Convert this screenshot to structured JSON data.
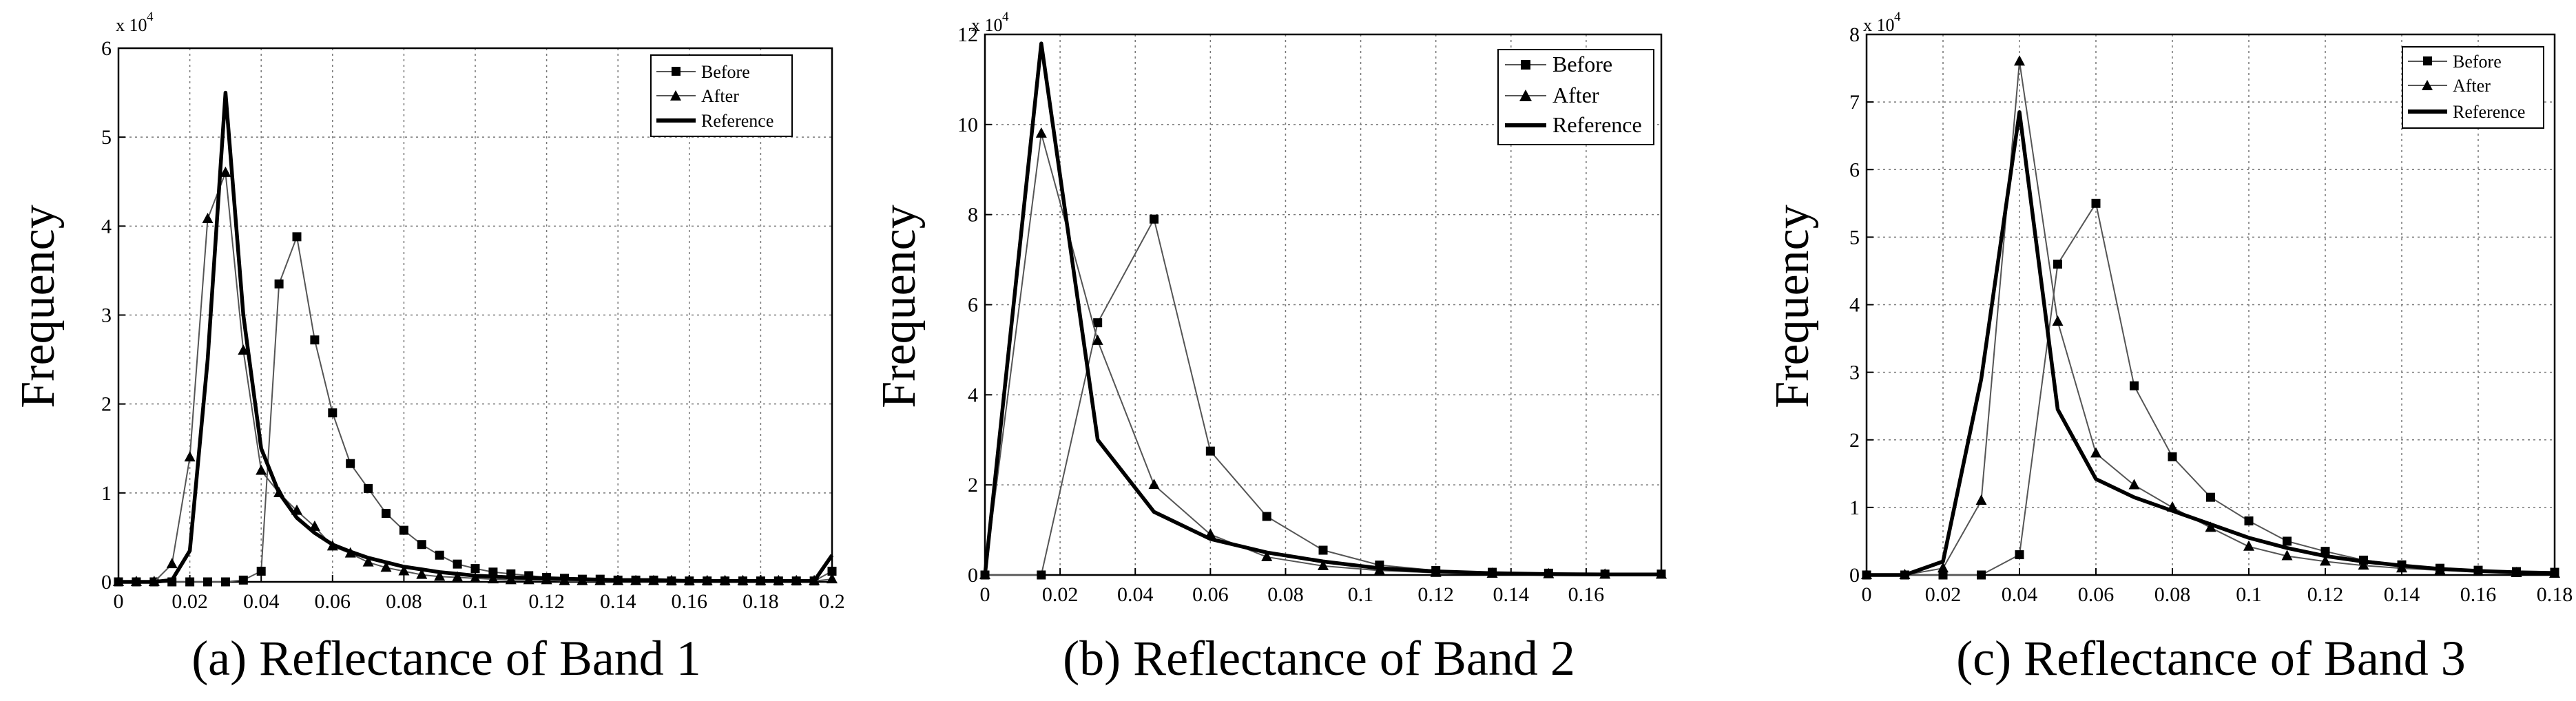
{
  "chart_data": [
    {
      "type": "line",
      "caption": "(a) Reflectance of  Band 1",
      "ylabel": "Frequency",
      "xlabel": "",
      "exponent_label": "x 10",
      "exponent_power": "4",
      "xlim": [
        0,
        0.2
      ],
      "ylim": [
        0,
        6
      ],
      "xticks": [
        0,
        0.02,
        0.04,
        0.06,
        0.08,
        0.1,
        0.12,
        0.14,
        0.16,
        0.18,
        0.2
      ],
      "xtick_labels": [
        "0",
        "0.02",
        "0.04",
        "0.06",
        "0.08",
        "0.1",
        "0.12",
        "0.14",
        "0.16",
        "0.18",
        "0.2"
      ],
      "yticks": [
        0,
        1,
        2,
        3,
        4,
        5,
        6
      ],
      "ytick_labels": [
        "0",
        "1",
        "2",
        "3",
        "4",
        "5",
        "6"
      ],
      "grid": true,
      "legend_position": "top-right",
      "series": [
        {
          "name": "Before",
          "marker": "square",
          "x": [
            0,
            0.005,
            0.01,
            0.015,
            0.02,
            0.025,
            0.03,
            0.035,
            0.04,
            0.045,
            0.05,
            0.055,
            0.06,
            0.065,
            0.07,
            0.075,
            0.08,
            0.085,
            0.09,
            0.095,
            0.1,
            0.105,
            0.11,
            0.115,
            0.12,
            0.125,
            0.13,
            0.135,
            0.14,
            0.145,
            0.15,
            0.155,
            0.16,
            0.165,
            0.17,
            0.175,
            0.18,
            0.185,
            0.19,
            0.195,
            0.2
          ],
          "y": [
            0,
            0,
            0,
            0,
            0,
            0,
            0,
            0.02,
            0.12,
            3.35,
            3.88,
            2.72,
            1.9,
            1.33,
            1.05,
            0.77,
            0.58,
            0.42,
            0.3,
            0.2,
            0.15,
            0.11,
            0.09,
            0.07,
            0.05,
            0.04,
            0.03,
            0.03,
            0.02,
            0.02,
            0.02,
            0.01,
            0.01,
            0.01,
            0.01,
            0.01,
            0.01,
            0.01,
            0.01,
            0.01,
            0.12
          ]
        },
        {
          "name": "After",
          "marker": "triangle",
          "x": [
            0,
            0.005,
            0.01,
            0.015,
            0.02,
            0.025,
            0.03,
            0.035,
            0.04,
            0.045,
            0.05,
            0.055,
            0.06,
            0.065,
            0.07,
            0.075,
            0.08,
            0.085,
            0.09,
            0.095,
            0.1,
            0.105,
            0.11,
            0.115,
            0.12,
            0.125,
            0.13,
            0.135,
            0.14,
            0.145,
            0.15,
            0.155,
            0.16,
            0.165,
            0.17,
            0.175,
            0.18,
            0.185,
            0.19,
            0.195,
            0.2
          ],
          "y": [
            0,
            0,
            0,
            0.2,
            1.4,
            4.08,
            4.6,
            2.6,
            1.25,
            1.0,
            0.8,
            0.62,
            0.4,
            0.32,
            0.22,
            0.16,
            0.12,
            0.08,
            0.06,
            0.05,
            0.04,
            0.03,
            0.02,
            0.02,
            0.02,
            0.01,
            0.01,
            0.01,
            0.01,
            0.01,
            0.01,
            0.01,
            0.01,
            0.01,
            0.01,
            0.01,
            0.01,
            0.01,
            0.01,
            0.01,
            0.03
          ]
        },
        {
          "name": "Reference",
          "marker": "none",
          "x": [
            0,
            0.005,
            0.01,
            0.015,
            0.02,
            0.025,
            0.03,
            0.035,
            0.04,
            0.045,
            0.05,
            0.055,
            0.06,
            0.065,
            0.07,
            0.075,
            0.08,
            0.085,
            0.09,
            0.095,
            0.1,
            0.11,
            0.12,
            0.13,
            0.14,
            0.15,
            0.16,
            0.17,
            0.18,
            0.19,
            0.195,
            0.2
          ],
          "y": [
            0,
            0,
            0,
            0.02,
            0.35,
            2.5,
            5.5,
            3.0,
            1.5,
            1.0,
            0.72,
            0.55,
            0.42,
            0.34,
            0.27,
            0.22,
            0.17,
            0.14,
            0.11,
            0.09,
            0.07,
            0.05,
            0.04,
            0.03,
            0.02,
            0.02,
            0.01,
            0.01,
            0.01,
            0.01,
            0.01,
            0.3
          ]
        }
      ]
    },
    {
      "type": "line",
      "caption": "(b) Reflectance of  Band 2",
      "ylabel": "Frequency",
      "xlabel": "",
      "exponent_label": "x 10",
      "exponent_power": "4",
      "xlim": [
        0,
        0.18
      ],
      "ylim": [
        0,
        12
      ],
      "xticks": [
        0,
        0.02,
        0.04,
        0.06,
        0.08,
        0.1,
        0.12,
        0.14,
        0.16
      ],
      "xtick_labels": [
        "0",
        "0.02",
        "0.04",
        "0.06",
        "0.08",
        "0.1",
        "0.12",
        "0.14",
        "0.16"
      ],
      "yticks": [
        0,
        2,
        4,
        6,
        8,
        10,
        12
      ],
      "ytick_labels": [
        "0",
        "2",
        "4",
        "6",
        "8",
        "10",
        "12"
      ],
      "grid": true,
      "legend_position": "top-right",
      "series": [
        {
          "name": "Before",
          "marker": "square",
          "x": [
            0,
            0.015,
            0.03,
            0.045,
            0.06,
            0.075,
            0.09,
            0.105,
            0.12,
            0.135,
            0.15,
            0.165,
            0.18
          ],
          "y": [
            0,
            0,
            5.6,
            7.9,
            2.75,
            1.3,
            0.55,
            0.22,
            0.1,
            0.06,
            0.04,
            0.02,
            0.02
          ]
        },
        {
          "name": "After",
          "marker": "triangle",
          "x": [
            0,
            0.015,
            0.03,
            0.045,
            0.06,
            0.075,
            0.09,
            0.105,
            0.12,
            0.135,
            0.15,
            0.165,
            0.18
          ],
          "y": [
            0,
            9.8,
            5.2,
            2.0,
            0.9,
            0.4,
            0.2,
            0.1,
            0.05,
            0.03,
            0.02,
            0.01,
            0.01
          ]
        },
        {
          "name": "Reference",
          "marker": "none",
          "x": [
            0,
            0.015,
            0.03,
            0.045,
            0.06,
            0.075,
            0.09,
            0.105,
            0.12,
            0.135,
            0.15,
            0.165,
            0.18
          ],
          "y": [
            0,
            11.8,
            3.0,
            1.4,
            0.8,
            0.5,
            0.3,
            0.15,
            0.08,
            0.04,
            0.02,
            0.01,
            0.01
          ]
        }
      ]
    },
    {
      "type": "line",
      "caption": "(c) Reflectance of  Band 3",
      "ylabel": "Frequency",
      "xlabel": "",
      "exponent_label": "x 10",
      "exponent_power": "4",
      "xlim": [
        0,
        0.18
      ],
      "ylim": [
        0,
        8
      ],
      "xticks": [
        0,
        0.02,
        0.04,
        0.06,
        0.08,
        0.1,
        0.12,
        0.14,
        0.16,
        0.18
      ],
      "xtick_labels": [
        "0",
        "0.02",
        "0.04",
        "0.06",
        "0.08",
        "0.1",
        "0.12",
        "0.14",
        "0.16",
        "0.18"
      ],
      "yticks": [
        0,
        1,
        2,
        3,
        4,
        5,
        6,
        7,
        8
      ],
      "ytick_labels": [
        "0",
        "1",
        "2",
        "3",
        "4",
        "5",
        "6",
        "7",
        "8"
      ],
      "grid": true,
      "legend_position": "top-right",
      "series": [
        {
          "name": "Before",
          "marker": "square",
          "x": [
            0,
            0.01,
            0.02,
            0.03,
            0.04,
            0.05,
            0.06,
            0.07,
            0.08,
            0.09,
            0.1,
            0.11,
            0.12,
            0.13,
            0.14,
            0.15,
            0.16,
            0.17,
            0.18
          ],
          "y": [
            0,
            0,
            0,
            0,
            0.3,
            4.6,
            5.5,
            2.8,
            1.75,
            1.15,
            0.8,
            0.5,
            0.35,
            0.22,
            0.15,
            0.1,
            0.07,
            0.05,
            0.04
          ]
        },
        {
          "name": "After",
          "marker": "triangle",
          "x": [
            0,
            0.01,
            0.02,
            0.03,
            0.04,
            0.05,
            0.06,
            0.07,
            0.08,
            0.09,
            0.1,
            0.11,
            0.12,
            0.13,
            0.14,
            0.15,
            0.16,
            0.17,
            0.18
          ],
          "y": [
            0,
            0,
            0.1,
            1.1,
            7.6,
            3.75,
            1.8,
            1.33,
            1.0,
            0.7,
            0.42,
            0.28,
            0.2,
            0.14,
            0.1,
            0.07,
            0.05,
            0.03,
            0.02
          ]
        },
        {
          "name": "Reference",
          "marker": "none",
          "x": [
            0,
            0.01,
            0.02,
            0.03,
            0.04,
            0.05,
            0.06,
            0.07,
            0.08,
            0.09,
            0.1,
            0.11,
            0.12,
            0.13,
            0.14,
            0.15,
            0.16,
            0.17,
            0.18
          ],
          "y": [
            0,
            0,
            0.2,
            2.9,
            6.85,
            2.45,
            1.42,
            1.15,
            0.95,
            0.75,
            0.55,
            0.4,
            0.28,
            0.2,
            0.14,
            0.09,
            0.06,
            0.04,
            0.03
          ]
        }
      ]
    }
  ]
}
